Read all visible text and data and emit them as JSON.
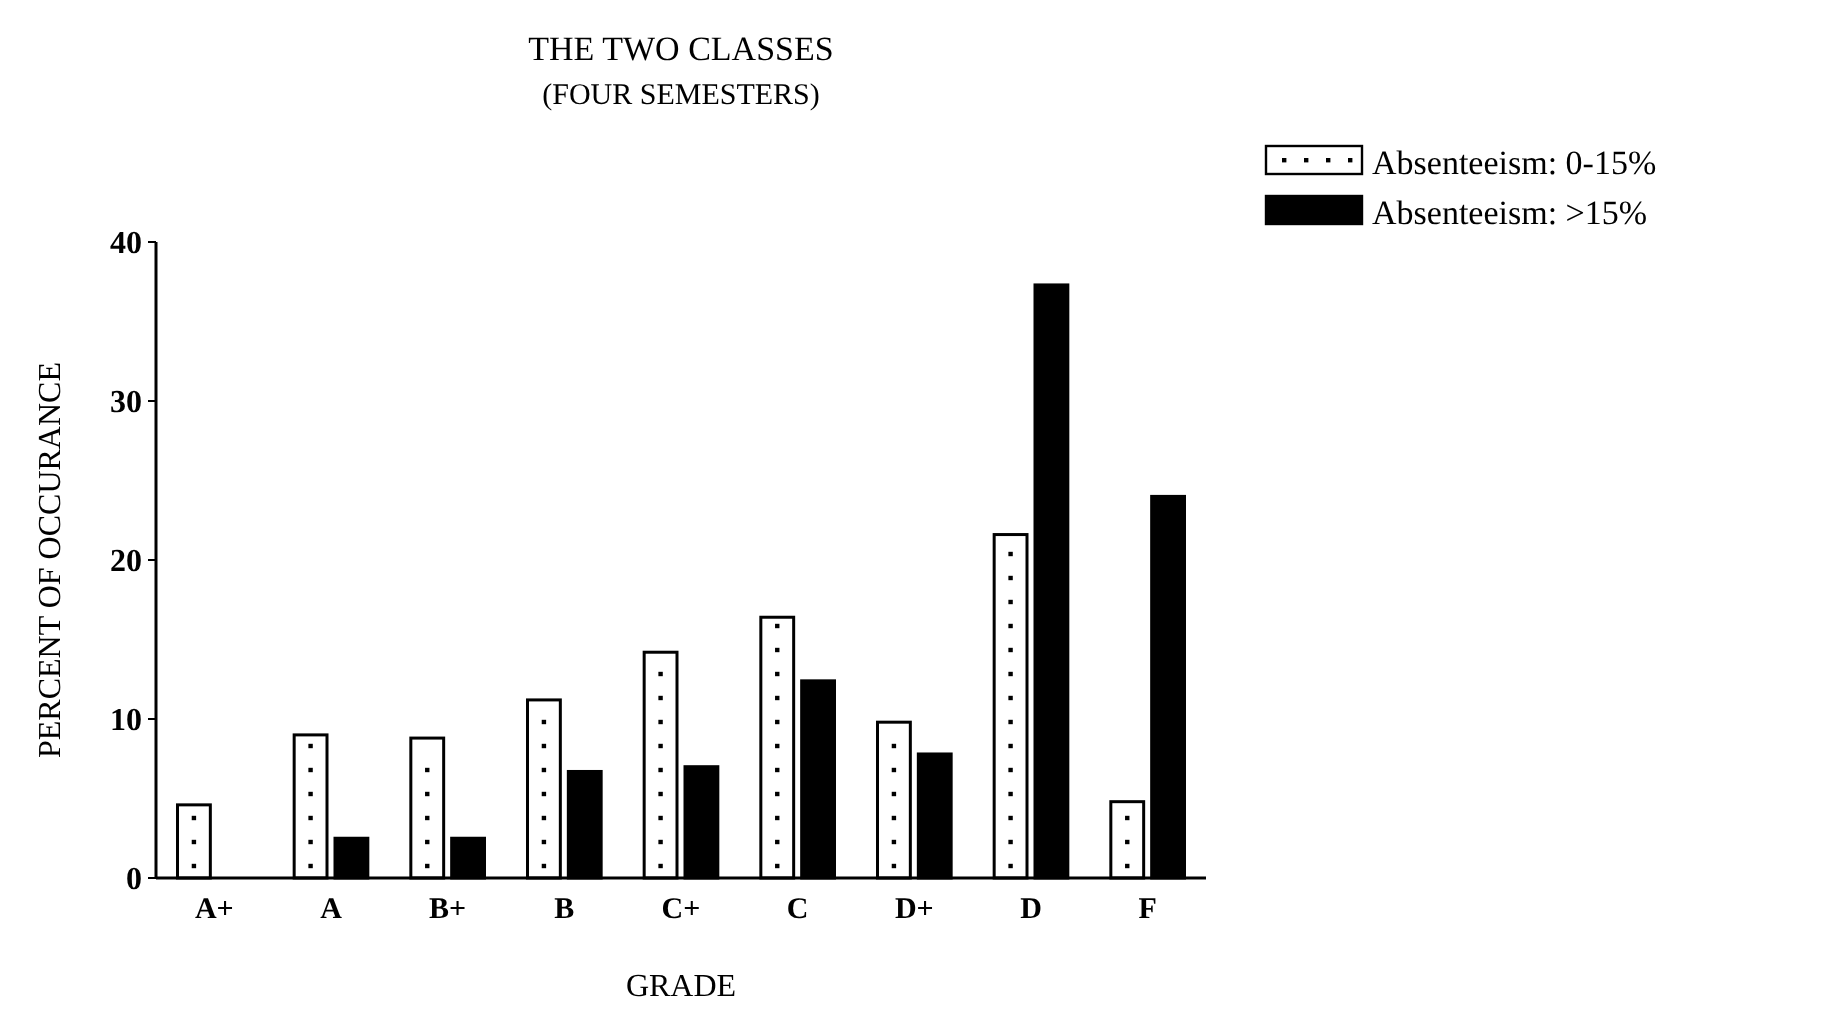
{
  "chart_data": {
    "type": "bar",
    "title": "THE TWO CLASSES",
    "subtitle": "(FOUR SEMESTERS)",
    "xlabel": "GRADE",
    "ylabel": "PERCENT OF OCCURANCE",
    "categories": [
      "A+",
      "A",
      "B+",
      "B",
      "C+",
      "C",
      "D+",
      "D",
      "F"
    ],
    "series": [
      {
        "name": "Absenteeism: 0-15%",
        "color": "#ffffff",
        "values": [
          4.6,
          9.0,
          8.8,
          11.2,
          14.2,
          16.4,
          9.8,
          21.6,
          4.8
        ]
      },
      {
        "name": "Absenteeism: >15%",
        "color": "#000000",
        "values": [
          null,
          2.5,
          2.5,
          6.7,
          7.0,
          12.4,
          7.8,
          37.3,
          24.0
        ]
      }
    ],
    "ylim": [
      0,
      40
    ],
    "yticks": [
      0,
      10,
      20,
      30,
      40
    ],
    "grid": false,
    "legend": "top right"
  }
}
